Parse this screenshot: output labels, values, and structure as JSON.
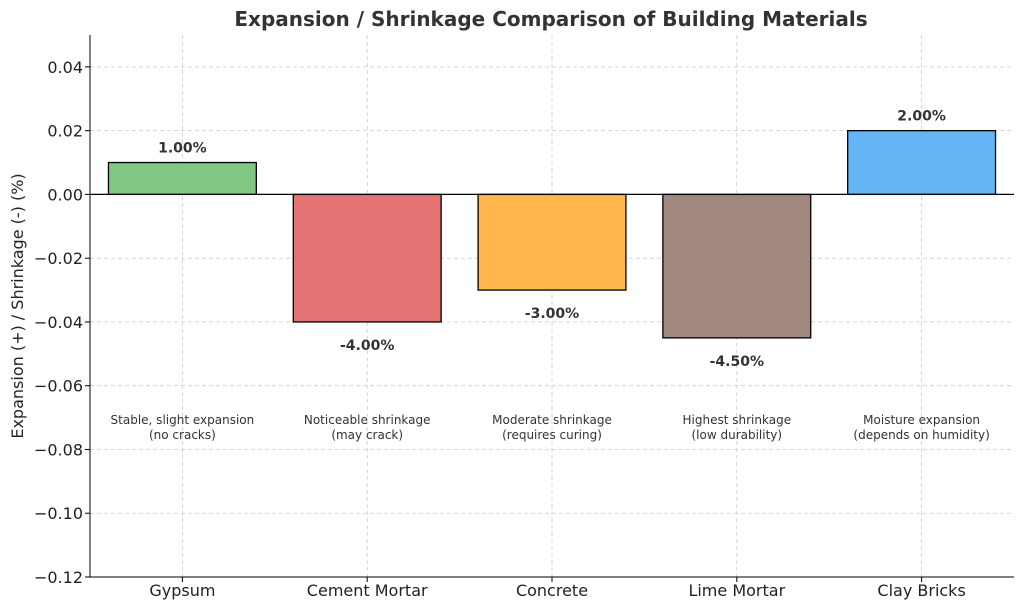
{
  "chart_data": {
    "type": "bar",
    "title": "Expansion / Shrinkage Comparison of Building Materials",
    "xlabel": "",
    "ylabel": "Expansion (+) / Shrinkage (-) (%)",
    "ylim": [
      -0.12,
      0.05
    ],
    "yticks": [
      -0.12,
      -0.1,
      -0.08,
      -0.06,
      -0.04,
      -0.02,
      0.0,
      0.02,
      0.04
    ],
    "ytick_labels": [
      "−0.12",
      "−0.10",
      "−0.08",
      "−0.06",
      "−0.04",
      "−0.02",
      "0.00",
      "0.02",
      "0.04"
    ],
    "grid": true,
    "categories": [
      "Gypsum",
      "Cement Mortar",
      "Concrete",
      "Lime Mortar",
      "Clay Bricks"
    ],
    "values": [
      0.01,
      -0.04,
      -0.03,
      -0.045,
      0.02
    ],
    "value_labels": [
      "1.00%",
      "-4.00%",
      "-3.00%",
      "-4.50%",
      "2.00%"
    ],
    "colors": [
      "#81c784",
      "#e57373",
      "#ffb74d",
      "#a1887f",
      "#64b5f6"
    ],
    "notes": [
      [
        "Stable, slight expansion",
        "(no cracks)"
      ],
      [
        "Noticeable shrinkage",
        "(may crack)"
      ],
      [
        "Moderate shrinkage",
        "(requires curing)"
      ],
      [
        "Highest shrinkage",
        "(low durability)"
      ],
      [
        "Moisture expansion",
        "(depends on humidity)"
      ]
    ],
    "note_y": -0.072
  }
}
